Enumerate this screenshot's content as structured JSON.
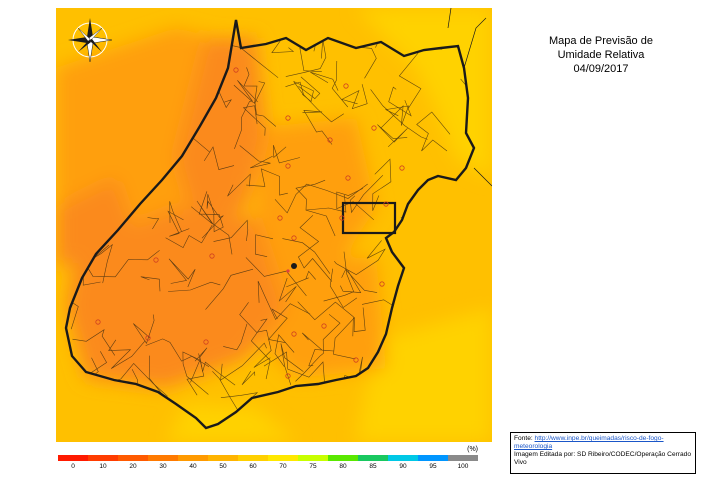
{
  "title": {
    "line1": "Mapa de Previsão de",
    "line2": "Umidade Relativa",
    "date": "04/09/2017"
  },
  "legend": {
    "unit": "(%)",
    "ticks": [
      "0",
      "10",
      "20",
      "30",
      "40",
      "50",
      "60",
      "70",
      "75",
      "80",
      "85",
      "90",
      "95",
      "100"
    ],
    "colors": [
      "#ff1a00",
      "#ff3c00",
      "#ff5a00",
      "#ff7a00",
      "#ff9a00",
      "#ffb400",
      "#ffd000",
      "#ffe800",
      "#c8ff00",
      "#5ae800",
      "#19c860",
      "#00c8e6",
      "#0096ff",
      "#8a8a8a"
    ]
  },
  "source": {
    "label": "Fonte:",
    "link_line1": "http://www.inpe.br/queimadas/risco-de-fogo-",
    "link_line2": "meteorologia",
    "edited": "Imagem Editada por: SD Ribeiro/CODEC/Operação Cerrado Vivo"
  },
  "map": {
    "compass_icon": "compass-rose-icon",
    "colors": {
      "background": "#ffc000",
      "mid": "#ff9f0f",
      "dark": "#fb8a1c",
      "light": "#ffd200",
      "border": "#1a1a1a"
    }
  }
}
